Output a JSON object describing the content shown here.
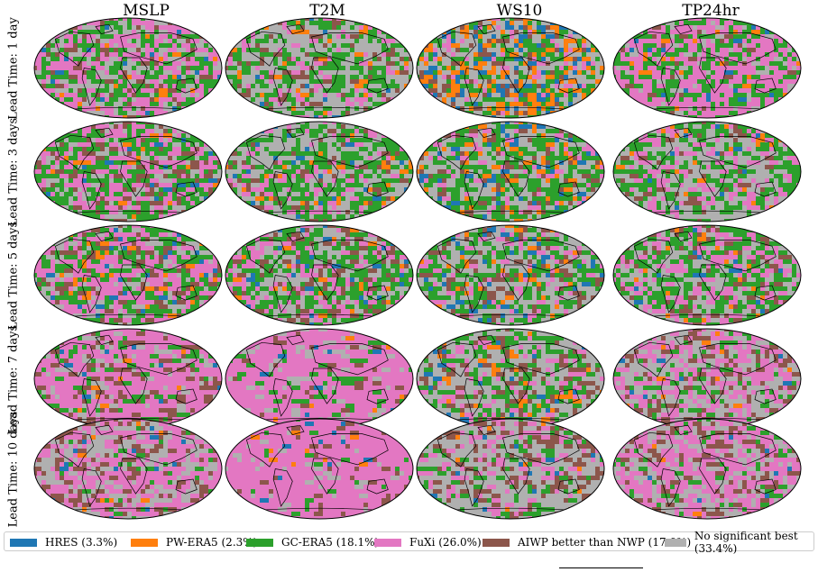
{
  "colors": {
    "HRES": "#1f77b4",
    "PW-ERA5": "#ff7f0e",
    "GC-ERA5": "#2ca02c",
    "FuXi": "#e377c2",
    "AIWP better than NWP": "#8c564b",
    "No significant best": "#b0b0b0"
  },
  "columns": [
    "MSLP",
    "T2M",
    "WS10",
    "TP24hr"
  ],
  "rows": [
    "Lead Time: 1 day",
    "Lead Time: 3 days",
    "Lead Time: 5 days",
    "Lead Time: 7 days",
    "Lead Time: 10 days"
  ],
  "legend": [
    {
      "key": "HRES",
      "label": "HRES (3.3%)",
      "percent": 3.3
    },
    {
      "key": "PW-ERA5",
      "label": "PW-ERA5 (2.3%)",
      "percent": 2.3
    },
    {
      "key": "GC-ERA5",
      "label": "GC-ERA5 (18.1%)",
      "percent": 18.1
    },
    {
      "key": "FuXi",
      "label": "FuXi (26.0%)",
      "percent": 26.0
    },
    {
      "key": "AIWP better than NWP",
      "label": "AIWP better than NWP (17.0%)",
      "percent": 17.0
    },
    {
      "key": "No significant best",
      "label": "No significant best (33.4%)",
      "percent": 33.4
    }
  ]
}
